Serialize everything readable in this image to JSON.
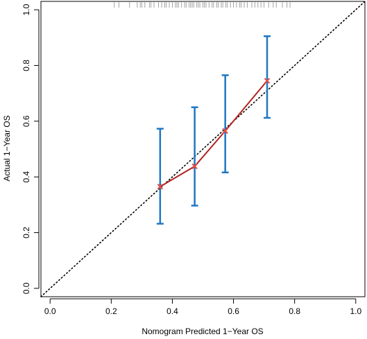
{
  "chart_data": {
    "type": "scatter",
    "title": "",
    "xlabel": "Nomogram Predicted 1−Year OS",
    "ylabel": "Actual 1−Year OS",
    "xlim": [
      -0.03,
      1.03
    ],
    "ylim": [
      -0.03,
      1.03
    ],
    "x_ticks": [
      0.0,
      0.2,
      0.4,
      0.6,
      0.8,
      1.0
    ],
    "y_ticks": [
      0.0,
      0.2,
      0.4,
      0.6,
      0.8,
      1.0
    ],
    "x_tick_labels": [
      "0.0",
      "0.2",
      "0.4",
      "0.6",
      "0.8",
      "1.0"
    ],
    "y_tick_labels": [
      "0.0",
      "0.2",
      "0.4",
      "0.6",
      "0.8",
      "1.0"
    ],
    "grid": false,
    "reference_line": {
      "x": [
        -0.03,
        1.03
      ],
      "y": [
        -0.03,
        1.03
      ],
      "style": "dotted"
    },
    "series": [
      {
        "x": [
          0.36,
          0.473,
          0.573,
          0.71
        ],
        "y": [
          0.365,
          0.438,
          0.565,
          0.745
        ],
        "error_low": [
          0.232,
          0.297,
          0.416,
          0.612
        ],
        "error_high": [
          0.573,
          0.65,
          0.765,
          0.905
        ]
      }
    ],
    "rug_x": [
      0.21,
      0.225,
      0.26,
      0.285,
      0.295,
      0.3,
      0.31,
      0.325,
      0.33,
      0.34,
      0.355,
      0.365,
      0.375,
      0.38,
      0.39,
      0.4,
      0.41,
      0.415,
      0.42,
      0.43,
      0.44,
      0.445,
      0.455,
      0.46,
      0.465,
      0.47,
      0.48,
      0.485,
      0.49,
      0.5,
      0.505,
      0.51,
      0.52,
      0.53,
      0.535,
      0.545,
      0.55,
      0.56,
      0.565,
      0.575,
      0.58,
      0.59,
      0.6,
      0.61,
      0.62,
      0.625,
      0.635,
      0.645,
      0.66,
      0.67,
      0.68,
      0.69,
      0.7,
      0.715,
      0.73,
      0.74,
      0.76,
      0.775,
      0.785
    ],
    "colors": {
      "line": "#b22222",
      "marker": "#e8473f",
      "error_bar": "#1f77c2",
      "rug": "#9a9a9a",
      "reference": "#000000"
    }
  }
}
